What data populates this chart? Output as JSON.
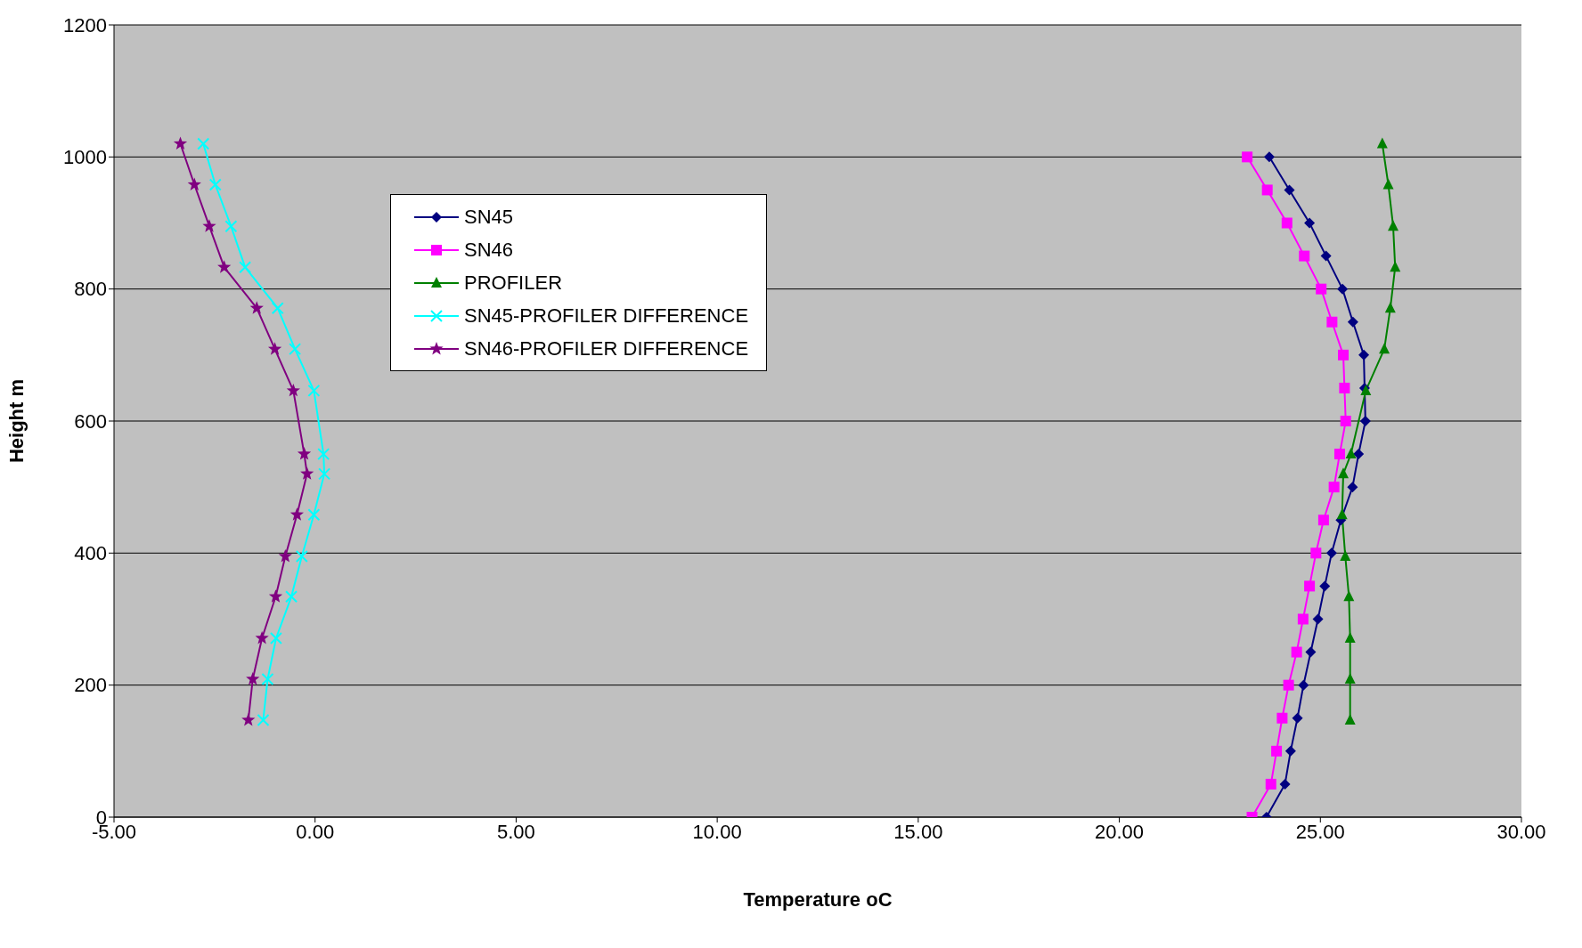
{
  "chart_data": {
    "type": "line",
    "xlabel": "Temperature oC",
    "ylabel": "Height m",
    "xlim": [
      -5,
      30
    ],
    "xticks": [
      {
        "value": -5,
        "label": "-5.00"
      },
      {
        "value": 0,
        "label": "0.00"
      },
      {
        "value": 5,
        "label": "5.00"
      },
      {
        "value": 10,
        "label": "10.00"
      },
      {
        "value": 15,
        "label": "15.00"
      },
      {
        "value": 20,
        "label": "20.00"
      },
      {
        "value": 25,
        "label": "25.00"
      },
      {
        "value": 30,
        "label": "30.00"
      }
    ],
    "ylim": [
      0,
      1200
    ],
    "yticks": [
      0,
      200,
      400,
      600,
      800,
      1000,
      1200
    ],
    "grid": "y",
    "legend": "top left",
    "line_style": "solid",
    "series": [
      {
        "name": "SN45",
        "color": "#000080",
        "marker": "diamond",
        "x": [
          23.66,
          24.12,
          24.26,
          24.43,
          24.58,
          24.76,
          24.94,
          25.11,
          25.28,
          25.51,
          25.8,
          25.95,
          26.12,
          26.1,
          26.08,
          25.81,
          25.55,
          25.14,
          24.73,
          24.23,
          23.73
        ],
        "values": [
          0,
          50,
          100,
          150,
          200,
          250,
          300,
          350,
          400,
          450,
          500,
          550,
          600,
          650,
          700,
          750,
          800,
          850,
          900,
          950,
          1000
        ]
      },
      {
        "name": "SN46",
        "color": "#ff00ff",
        "marker": "square",
        "x": [
          23.3,
          23.77,
          23.91,
          24.05,
          24.21,
          24.41,
          24.57,
          24.73,
          24.89,
          25.08,
          25.34,
          25.48,
          25.63,
          25.6,
          25.57,
          25.29,
          25.02,
          24.6,
          24.17,
          23.68,
          23.18
        ],
        "values": [
          0,
          50,
          100,
          150,
          200,
          250,
          300,
          350,
          400,
          450,
          500,
          550,
          600,
          650,
          700,
          750,
          800,
          850,
          900,
          950,
          1000
        ]
      },
      {
        "name": "PROFILER",
        "color": "#008000",
        "marker": "triangle",
        "x": [
          25.74,
          25.74,
          25.74,
          25.71,
          25.62,
          25.54,
          25.57,
          25.76,
          26.13,
          26.59,
          26.74,
          26.86,
          26.81,
          26.69,
          26.54
        ],
        "values": [
          147,
          209,
          271,
          334,
          395,
          458,
          520,
          550,
          646,
          709,
          771,
          833,
          895,
          958,
          1020
        ]
      },
      {
        "name": "SN45-PROFILER DIFFERENCE",
        "color": "#00ffff",
        "marker": "cross",
        "x": [
          -1.29,
          -1.18,
          -0.97,
          -0.59,
          -0.33,
          -0.03,
          0.23,
          0.21,
          -0.03,
          -0.5,
          -0.93,
          -1.74,
          -2.09,
          -2.48,
          -2.78
        ],
        "values": [
          147,
          209,
          271,
          334,
          395,
          458,
          520,
          550,
          646,
          709,
          771,
          833,
          895,
          958,
          1020
        ]
      },
      {
        "name": "SN46-PROFILER DIFFERENCE",
        "color": "#800080",
        "marker": "star",
        "x": [
          -1.66,
          -1.55,
          -1.32,
          -0.98,
          -0.74,
          -0.45,
          -0.2,
          -0.27,
          -0.54,
          -1.0,
          -1.45,
          -2.26,
          -2.63,
          -3.0,
          -3.35
        ],
        "values": [
          147,
          209,
          271,
          334,
          395,
          458,
          520,
          550,
          646,
          709,
          771,
          833,
          895,
          958,
          1020
        ]
      }
    ]
  }
}
